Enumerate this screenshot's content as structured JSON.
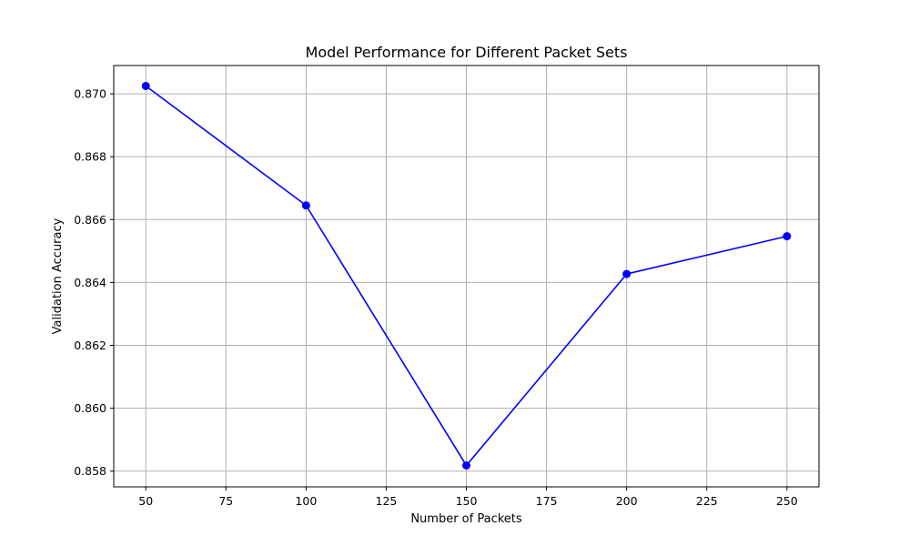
{
  "chart_data": {
    "type": "line",
    "title": "Model Performance for Different Packet Sets",
    "xlabel": "Number of Packets",
    "ylabel": "Validation Accuracy",
    "xlim": [
      40,
      260
    ],
    "ylim": [
      0.8575,
      0.8709
    ],
    "xticks": [
      50,
      75,
      100,
      125,
      150,
      175,
      200,
      225,
      250
    ],
    "yticks": [
      0.858,
      0.86,
      0.862,
      0.864,
      0.866,
      0.868,
      0.87
    ],
    "ytick_labels": [
      "0.858",
      "0.860",
      "0.862",
      "0.864",
      "0.866",
      "0.868",
      "0.870"
    ],
    "grid": true,
    "legend": false,
    "marker": "circle",
    "series": [
      {
        "color": "#0000ff",
        "x": [
          50,
          100,
          150,
          200,
          250
        ],
        "y": [
          0.87025,
          0.86645,
          0.85818,
          0.86427,
          0.86547
        ]
      }
    ]
  }
}
